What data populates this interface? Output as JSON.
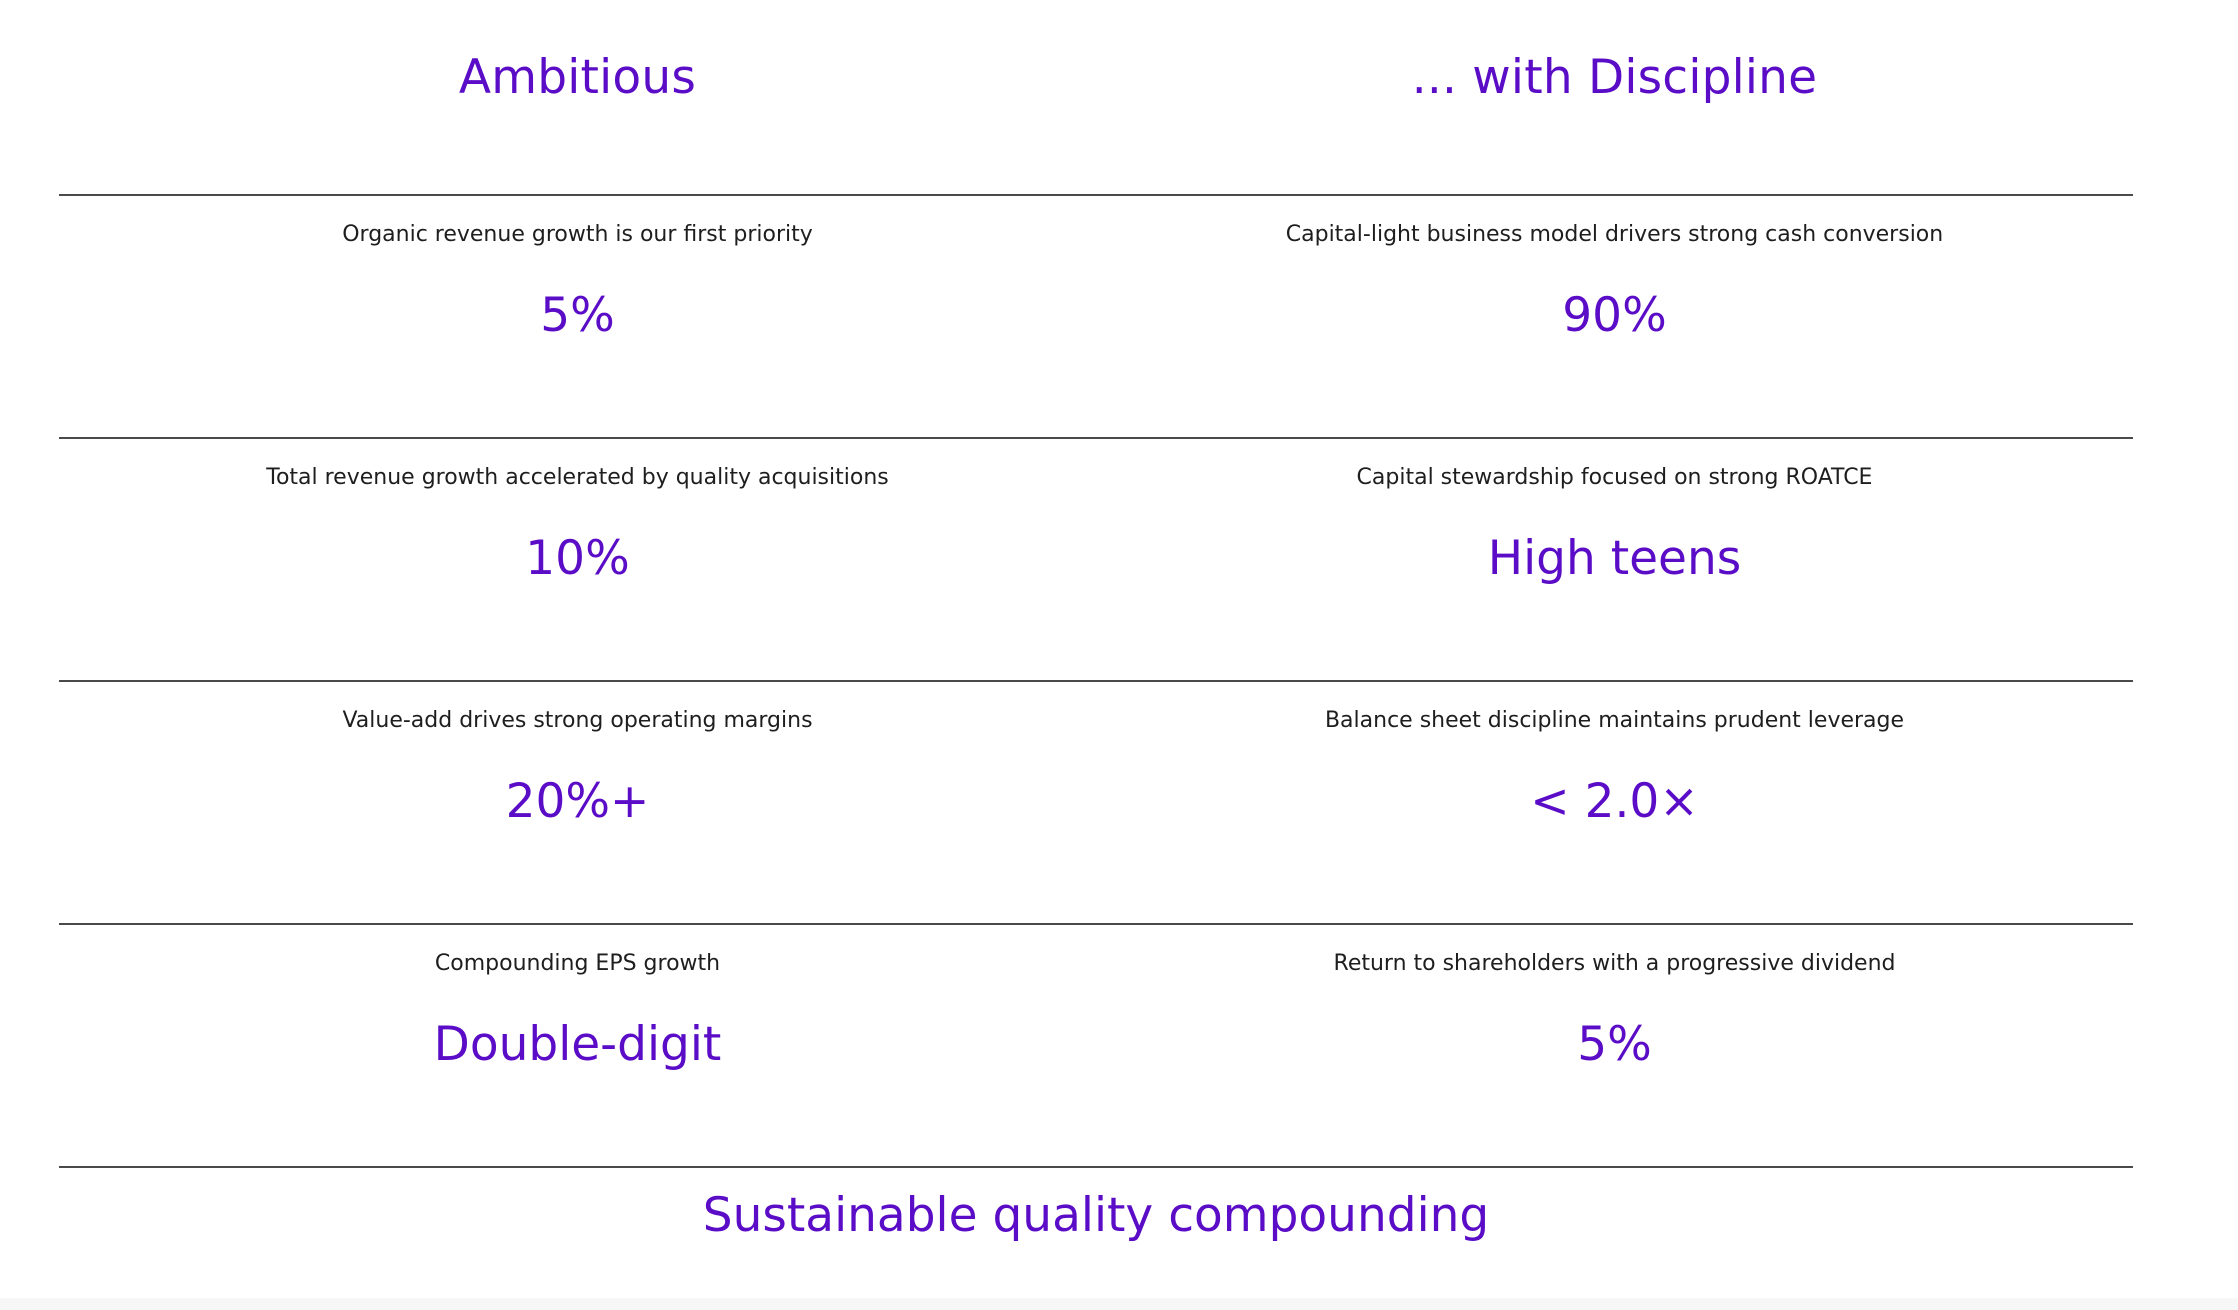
{
  "columns": {
    "left_title": "Ambitious",
    "right_title": "... with Discipline"
  },
  "rows": [
    {
      "left": {
        "label": "Organic revenue growth is our first priority",
        "value": "5%"
      },
      "right": {
        "label": "Capital-light business model drivers strong cash conversion",
        "value": "90%"
      }
    },
    {
      "left": {
        "label": "Total revenue growth accelerated by quality acquisitions",
        "value": "10%"
      },
      "right": {
        "label": "Capital stewardship focused on strong ROATCE",
        "value": "High teens"
      }
    },
    {
      "left": {
        "label": "Value-add drives strong operating margins",
        "value": "20%+"
      },
      "right": {
        "label": "Balance sheet discipline maintains prudent leverage",
        "value": "< 2.0×"
      }
    },
    {
      "left": {
        "label": "Compounding EPS growth",
        "value": "Double-digit"
      },
      "right": {
        "label": "Return to shareholders with a progressive dividend",
        "value": "5%"
      }
    }
  ],
  "footer": {
    "text": "Sustainable quality compounding"
  },
  "colors": {
    "accent": "#5a0cc7",
    "text": "#1e1e1e",
    "divider": "#4a4a4a"
  }
}
